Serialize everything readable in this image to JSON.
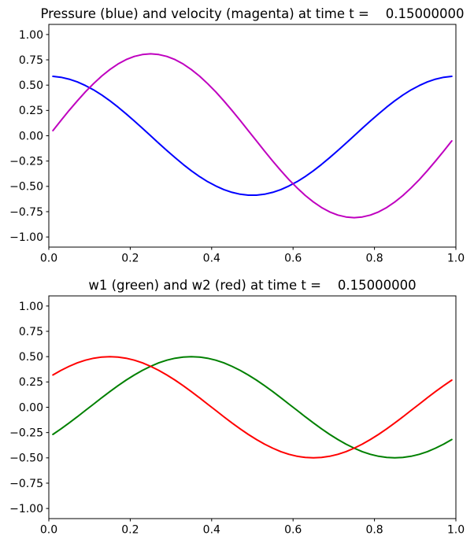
{
  "figure": {
    "background": "#ffffff",
    "text_color": "#000000",
    "axes_color": "#000000"
  },
  "chart_data": [
    {
      "type": "line",
      "title": "Pressure (blue) and velocity (magenta) at time t =    0.15000000",
      "xlabel": "",
      "ylabel": "",
      "xlim": [
        0.0,
        1.0
      ],
      "ylim": [
        -1.1,
        1.1
      ],
      "grid": false,
      "legend": "none",
      "xticks": {
        "values": [
          0.0,
          0.2,
          0.4,
          0.6,
          0.8,
          1.0
        ],
        "labels": [
          "0.0",
          "0.2",
          "0.4",
          "0.6",
          "0.8",
          "1.0"
        ]
      },
      "yticks": {
        "values": [
          1.0,
          0.75,
          0.5,
          0.25,
          0.0,
          -0.25,
          -0.5,
          -0.75,
          -1.0
        ],
        "labels": [
          "1.00",
          "0.75",
          "0.50",
          "0.25",
          "0.00",
          "−0.25",
          "−0.50",
          "−0.75",
          "−1.00"
        ]
      },
      "x": [
        0.01,
        0.03,
        0.05,
        0.07,
        0.09,
        0.11,
        0.13,
        0.15,
        0.17,
        0.19,
        0.21,
        0.23,
        0.25,
        0.27,
        0.29,
        0.31,
        0.33,
        0.35,
        0.37,
        0.39,
        0.41,
        0.43,
        0.45,
        0.47,
        0.49,
        0.51,
        0.53,
        0.55,
        0.57,
        0.59,
        0.61,
        0.63,
        0.65,
        0.67,
        0.69,
        0.71,
        0.73,
        0.75,
        0.77,
        0.79,
        0.81,
        0.83,
        0.85,
        0.87,
        0.89,
        0.91,
        0.93,
        0.95,
        0.97,
        0.99
      ],
      "series": [
        {
          "name": "pressure",
          "color": "#0000ff",
          "linewidth": 2,
          "values": [
            0.5866,
            0.5774,
            0.559,
            0.5318,
            0.4963,
            0.4529,
            0.4024,
            0.3455,
            0.2832,
            0.2164,
            0.1462,
            0.0737,
            0.0,
            -0.0737,
            -0.1462,
            -0.2164,
            -0.2832,
            -0.3455,
            -0.4024,
            -0.4529,
            -0.4963,
            -0.5318,
            -0.559,
            -0.5774,
            -0.5866,
            -0.5866,
            -0.5774,
            -0.559,
            -0.5318,
            -0.4963,
            -0.4529,
            -0.4024,
            -0.3455,
            -0.2832,
            -0.2164,
            -0.1462,
            -0.0737,
            0.0,
            0.0737,
            0.1462,
            0.2164,
            0.2832,
            0.3455,
            0.4024,
            0.4529,
            0.4963,
            0.5318,
            0.559,
            0.5774,
            0.5866
          ]
        },
        {
          "name": "velocity",
          "color": "#bf00bf",
          "linewidth": 2,
          "values": [
            0.0508,
            0.1516,
            0.25,
            0.3445,
            0.4335,
            0.5157,
            0.5898,
            0.6545,
            0.7089,
            0.7522,
            0.7836,
            0.8026,
            0.809,
            0.8026,
            0.7836,
            0.7522,
            0.7089,
            0.6545,
            0.5898,
            0.5157,
            0.4335,
            0.3445,
            0.25,
            0.1516,
            0.0508,
            -0.0508,
            -0.1516,
            -0.25,
            -0.3445,
            -0.4335,
            -0.5157,
            -0.5898,
            -0.6545,
            -0.7089,
            -0.7522,
            -0.7836,
            -0.8026,
            -0.809,
            -0.8026,
            -0.7836,
            -0.7522,
            -0.7089,
            -0.6545,
            -0.5898,
            -0.5157,
            -0.4335,
            -0.3445,
            -0.25,
            -0.1516,
            -0.0508
          ]
        }
      ]
    },
    {
      "type": "line",
      "title": "w1 (green) and w2 (red) at time t =    0.15000000",
      "xlabel": "",
      "ylabel": "",
      "xlim": [
        0.0,
        1.0
      ],
      "ylim": [
        -1.1,
        1.1
      ],
      "grid": false,
      "legend": "none",
      "xticks": {
        "values": [
          0.0,
          0.2,
          0.4,
          0.6,
          0.8,
          1.0
        ],
        "labels": [
          "0.0",
          "0.2",
          "0.4",
          "0.6",
          "0.8",
          "1.0"
        ]
      },
      "yticks": {
        "values": [
          1.0,
          0.75,
          0.5,
          0.25,
          0.0,
          -0.25,
          -0.5,
          -0.75,
          -1.0
        ],
        "labels": [
          "1.00",
          "0.75",
          "0.50",
          "0.25",
          "0.00",
          "−0.25",
          "−0.50",
          "−0.75",
          "−1.00"
        ]
      },
      "x": [
        0.01,
        0.03,
        0.05,
        0.07,
        0.09,
        0.11,
        0.13,
        0.15,
        0.17,
        0.19,
        0.21,
        0.23,
        0.25,
        0.27,
        0.29,
        0.31,
        0.33,
        0.35,
        0.37,
        0.39,
        0.41,
        0.43,
        0.45,
        0.47,
        0.49,
        0.51,
        0.53,
        0.55,
        0.57,
        0.59,
        0.61,
        0.63,
        0.65,
        0.67,
        0.69,
        0.71,
        0.73,
        0.75,
        0.77,
        0.79,
        0.81,
        0.83,
        0.85,
        0.87,
        0.89,
        0.91,
        0.93,
        0.95,
        0.97,
        0.99
      ],
      "series": [
        {
          "name": "w1",
          "color": "#008000",
          "linewidth": 2,
          "values": [
            -0.2679,
            -0.2129,
            -0.1545,
            -0.0937,
            -0.0314,
            0.0314,
            0.0937,
            0.1545,
            0.2129,
            0.2679,
            0.3187,
            0.3645,
            0.4045,
            0.4382,
            0.4649,
            0.4843,
            0.4961,
            0.5,
            0.4961,
            0.4843,
            0.4649,
            0.4382,
            0.4045,
            0.3645,
            0.3187,
            0.2679,
            0.2129,
            0.1545,
            0.0937,
            0.0314,
            -0.0314,
            -0.0937,
            -0.1545,
            -0.2129,
            -0.2679,
            -0.3187,
            -0.3645,
            -0.4045,
            -0.4382,
            -0.4649,
            -0.4843,
            -0.4961,
            -0.5,
            -0.4961,
            -0.4843,
            -0.4649,
            -0.4382,
            -0.4045,
            -0.3645,
            -0.3187
          ]
        },
        {
          "name": "w2",
          "color": "#ff0000",
          "linewidth": 2,
          "values": [
            0.3187,
            0.3645,
            0.4045,
            0.4382,
            0.4649,
            0.4843,
            0.4961,
            0.5,
            0.4961,
            0.4843,
            0.4649,
            0.4382,
            0.4045,
            0.3645,
            0.3187,
            0.2679,
            0.2129,
            0.1545,
            0.0937,
            0.0314,
            -0.0314,
            -0.0937,
            -0.1545,
            -0.2129,
            -0.2679,
            -0.3187,
            -0.3645,
            -0.4045,
            -0.4382,
            -0.4649,
            -0.4843,
            -0.4961,
            -0.5,
            -0.4961,
            -0.4843,
            -0.4649,
            -0.4382,
            -0.4045,
            -0.3645,
            -0.3187,
            -0.2679,
            -0.2129,
            -0.1545,
            -0.0937,
            -0.0314,
            0.0314,
            0.0937,
            0.1545,
            0.2129,
            0.2679
          ]
        }
      ]
    }
  ]
}
